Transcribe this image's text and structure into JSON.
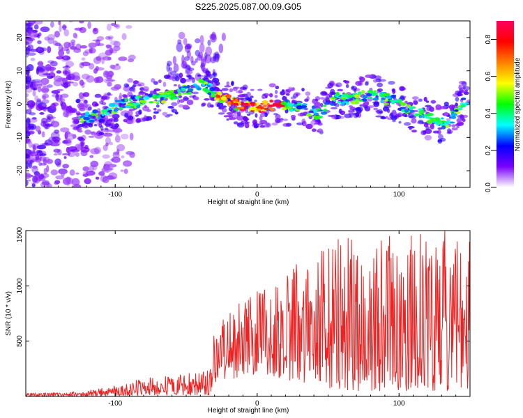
{
  "title": "S225.2025.087.00.09.G05",
  "chart_data": [
    {
      "type": "heatmap",
      "xlabel": "Height of straight line (km)",
      "ylabel": "Frequency (Hz)",
      "xlim": [
        -163,
        150
      ],
      "ylim": [
        -25,
        25
      ],
      "x_ticks": [
        -100,
        0,
        100
      ],
      "y_ticks": [
        20,
        10,
        0,
        -10,
        -20
      ],
      "ridge": {
        "x": [
          -125,
          -110,
          -95,
          -80,
          -65,
          -50,
          -40,
          -35,
          -25,
          -15,
          0,
          15,
          30,
          45,
          55,
          65,
          80,
          95,
          110,
          125,
          135,
          145
        ],
        "y": [
          -5,
          -3,
          0,
          1,
          2,
          4,
          6,
          5,
          2,
          0,
          -1,
          0,
          -1,
          -3,
          2,
          1,
          3,
          1,
          -2,
          -5,
          -6,
          1
        ]
      },
      "colorbar": {
        "label": "Normalized spectral amplitude",
        "min": 0.0,
        "max": 0.9,
        "ticks": [
          "0.0",
          "0.2",
          "0.4",
          "0.6",
          "0.8"
        ],
        "colors": [
          "#ffffff",
          "#7a00ff",
          "#0000ff",
          "#00ffff",
          "#00ff00",
          "#ffff00",
          "#ff7f00",
          "#ff0000",
          "#ff0060"
        ]
      }
    },
    {
      "type": "line",
      "xlabel": "Height of straight line (km)",
      "ylabel": "SNR (10 * v/v)",
      "xlim": [
        -163,
        150
      ],
      "ylim": [
        0,
        1500
      ],
      "x_ticks": [
        -100,
        0,
        100
      ],
      "y_ticks": [
        500,
        1000,
        1500
      ],
      "color": "#ee2222",
      "envelope": {
        "x": [
          -163,
          -130,
          -120,
          -100,
          -80,
          -60,
          -40,
          -33,
          -30,
          -20,
          0,
          20,
          40,
          60,
          80,
          100,
          120,
          140,
          150
        ],
        "min": [
          0,
          0,
          0,
          5,
          10,
          10,
          10,
          10,
          120,
          150,
          200,
          150,
          100,
          50,
          50,
          50,
          50,
          50,
          50
        ],
        "max": [
          30,
          40,
          60,
          100,
          170,
          200,
          220,
          240,
          700,
          800,
          950,
          1100,
          1350,
          1450,
          1480,
          1450,
          1500,
          1500,
          1500
        ]
      }
    }
  ]
}
